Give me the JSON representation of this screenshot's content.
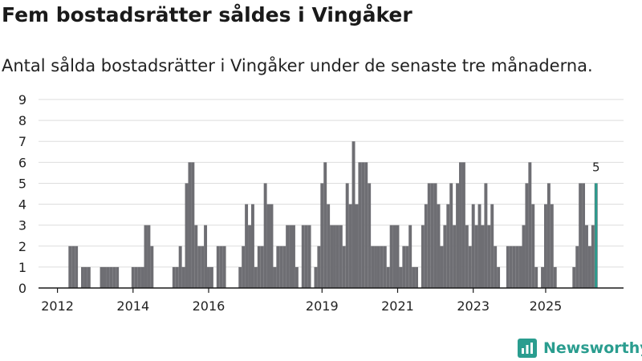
{
  "header": {
    "title": "Fem bostadsrätter såldes i Vingåker",
    "subtitle": "Antal sålda bostadsrätter i Vingåker under de senaste tre månaderna."
  },
  "brand": {
    "name": "Newsworthy"
  },
  "colors": {
    "bar": "#6e6e73",
    "highlight": "#2a9d8f",
    "grid": "#dddddd",
    "axis": "#1a1a1a"
  },
  "chart_data": {
    "type": "bar",
    "title": "Fem bostadsrätter såldes i Vingåker",
    "xlabel": "",
    "ylabel": "",
    "ylim": [
      0,
      9
    ],
    "yticks": [
      "0",
      "1",
      "2",
      "3",
      "4",
      "5",
      "6",
      "7",
      "8",
      "9"
    ],
    "xticks": [
      {
        "label": "2012",
        "index": 5
      },
      {
        "label": "2014",
        "index": 29
      },
      {
        "label": "2016",
        "index": 53
      },
      {
        "label": "2019",
        "index": 89
      },
      {
        "label": "2021",
        "index": 113
      },
      {
        "label": "2023",
        "index": 137
      },
      {
        "label": "2025",
        "index": 160
      }
    ],
    "series": [
      {
        "name": "Antal sålda bostadsrätter",
        "values": [
          0,
          0,
          0,
          0,
          0,
          0,
          0,
          0,
          0,
          2,
          2,
          2,
          0,
          1,
          1,
          1,
          0,
          0,
          0,
          1,
          1,
          1,
          1,
          1,
          1,
          0,
          0,
          0,
          0,
          1,
          1,
          1,
          1,
          3,
          3,
          2,
          0,
          0,
          0,
          0,
          0,
          0,
          1,
          1,
          2,
          1,
          5,
          6,
          6,
          3,
          2,
          2,
          3,
          1,
          1,
          0,
          2,
          2,
          2,
          0,
          0,
          0,
          0,
          1,
          2,
          4,
          3,
          4,
          1,
          2,
          2,
          5,
          4,
          4,
          1,
          2,
          2,
          2,
          3,
          3,
          3,
          1,
          0,
          3,
          3,
          3,
          0,
          1,
          2,
          5,
          6,
          4,
          3,
          3,
          3,
          3,
          2,
          5,
          4,
          7,
          4,
          6,
          6,
          6,
          5,
          2,
          2,
          2,
          2,
          2,
          1,
          3,
          3,
          3,
          1,
          2,
          2,
          3,
          1,
          1,
          0,
          3,
          4,
          5,
          5,
          5,
          4,
          2,
          3,
          4,
          5,
          3,
          5,
          6,
          6,
          3,
          2,
          4,
          3,
          4,
          3,
          5,
          3,
          4,
          2,
          1,
          0,
          0,
          2,
          2,
          2,
          2,
          2,
          3,
          5,
          6,
          4,
          1,
          0,
          1,
          4,
          5,
          4,
          1,
          0,
          0,
          0,
          0,
          0,
          1,
          2,
          5,
          5,
          3,
          2,
          3,
          5
        ]
      }
    ],
    "highlight": {
      "index": 176,
      "value": 5,
      "label": "5"
    }
  }
}
